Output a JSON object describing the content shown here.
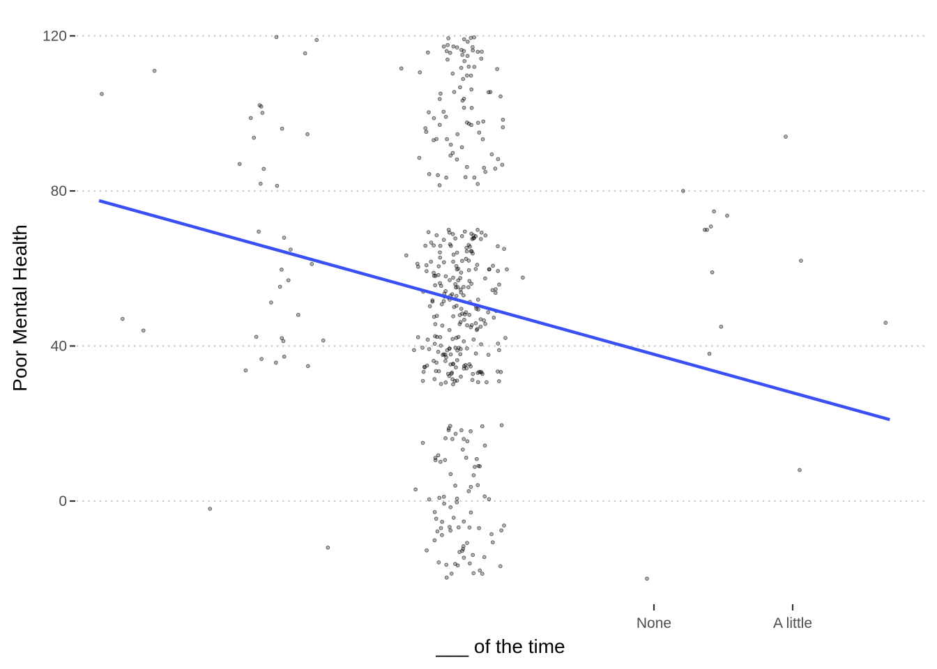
{
  "chart_data": {
    "type": "scatter",
    "title": "",
    "xlabel": "___ of the time",
    "ylabel": "Poor Mental Health",
    "x_ticks": [
      "None",
      "A little"
    ],
    "y_ticks": [
      0,
      40,
      80,
      120
    ],
    "ylim": [
      -25,
      125
    ],
    "grid": "horizontal dotted",
    "point_color": "#000000",
    "line_color": "#3a50f5",
    "trend_line": {
      "label": "linear fit",
      "start": {
        "x_level": -4.0,
        "y": 77.5
      },
      "end": {
        "x_level": 1.7,
        "y": 21.0
      }
    },
    "clusters": [
      {
        "x_level": -1.4,
        "y_center": 100,
        "y_half_range": 20,
        "count": 85
      },
      {
        "x_level": -1.4,
        "y_center": 50,
        "y_half_range": 20,
        "count": 220
      },
      {
        "x_level": -1.4,
        "y_center": 0,
        "y_half_range": 20,
        "count": 80
      },
      {
        "x_level": -2.7,
        "y_center": 100,
        "y_half_range": 20,
        "count": 14
      },
      {
        "x_level": -2.7,
        "y_center": 50,
        "y_half_range": 20,
        "count": 18
      },
      {
        "x_level": 0.4,
        "y_center": 55,
        "y_half_range": 20,
        "count": 6
      }
    ],
    "outliers": [
      {
        "x_level": -3.98,
        "y": 105
      },
      {
        "x_level": -3.6,
        "y": 111
      },
      {
        "x_level": -3.83,
        "y": 47
      },
      {
        "x_level": -3.68,
        "y": 44
      },
      {
        "x_level": -3.2,
        "y": -2
      },
      {
        "x_level": -2.35,
        "y": -12
      },
      {
        "x_level": 0.95,
        "y": 94
      },
      {
        "x_level": 1.06,
        "y": 62
      },
      {
        "x_level": 1.67,
        "y": 46
      },
      {
        "x_level": 1.05,
        "y": 8
      },
      {
        "x_level": -0.05,
        "y": -20
      },
      {
        "x_level": 0.21,
        "y": 80
      },
      {
        "x_level": 0.42,
        "y": 59
      },
      {
        "x_level": 0.4,
        "y": 38
      }
    ]
  }
}
